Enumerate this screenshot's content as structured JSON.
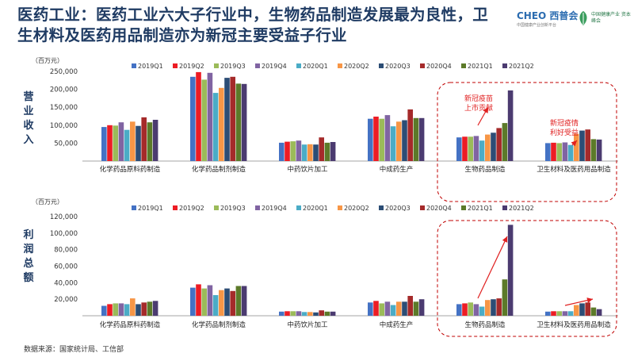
{
  "header": {
    "title": "医药工业：医药工业六大子行业中，生物药品制造发展最为良性，卫生材料及医药用品制造亦为新冠主要受益子行业",
    "logo_primary": "CHEO 西普会",
    "logo_primary_sub": "中国健康产业创新平台",
    "logo_secondary": "中国健康产业 资本峰会"
  },
  "footer": {
    "source": "数据来源：国家统计局、工信部"
  },
  "colors": {
    "series": [
      "#4472c4",
      "#ed1c24",
      "#9bbb59",
      "#8064a2",
      "#4bacc6",
      "#f79646",
      "#2c4d75",
      "#a52a2a",
      "#5c7a29",
      "#4b3b70"
    ],
    "highlight_box": "#c00000",
    "arrow": "#e02020",
    "annotation_text": "#e02020"
  },
  "chart_data": [
    {
      "type": "bar",
      "title": "",
      "side_label": "营业收入",
      "unit_label": "（百万元）",
      "categories": [
        "化学药品原料药制造",
        "化学药品制剂制造",
        "中药饮片加工",
        "中成药生产",
        "生物药品制造",
        "卫生材料及医药用品制造"
      ],
      "ylim": [
        0,
        250000
      ],
      "yticks": [
        "",
        "50,000",
        "100,000",
        "150,000",
        "200,000",
        "250,000"
      ],
      "ytick_values": [
        0,
        50000,
        100000,
        150000,
        200000,
        250000
      ],
      "legend": "top",
      "grid": false,
      "series": [
        {
          "name": "2019Q1",
          "values": [
            95000,
            235000,
            51000,
            118000,
            66000,
            50000
          ]
        },
        {
          "name": "2019Q2",
          "values": [
            100000,
            248000,
            54000,
            124000,
            68000,
            51000
          ]
        },
        {
          "name": "2019Q3",
          "values": [
            99000,
            227000,
            55000,
            118000,
            68000,
            50000
          ]
        },
        {
          "name": "2019Q4",
          "values": [
            108000,
            246000,
            57000,
            128000,
            70000,
            52000
          ]
        },
        {
          "name": "2020Q1",
          "values": [
            87000,
            190000,
            46000,
            97000,
            57000,
            45000
          ]
        },
        {
          "name": "2020Q2",
          "values": [
            110000,
            204000,
            47000,
            110000,
            74000,
            76000
          ]
        },
        {
          "name": "2020Q3",
          "values": [
            98000,
            232000,
            46000,
            114000,
            79000,
            85000
          ]
        },
        {
          "name": "2020Q4",
          "values": [
            122000,
            235000,
            66000,
            144000,
            92000,
            88000
          ]
        },
        {
          "name": "2021Q1",
          "values": [
            108000,
            216000,
            51000,
            120000,
            106000,
            61000
          ]
        },
        {
          "name": "2021Q2",
          "values": [
            115000,
            215000,
            53000,
            120000,
            197000,
            60000
          ]
        }
      ],
      "annotations": [
        {
          "category": "生物药品制造",
          "text": [
            "新冠疫苗",
            "上市贡献"
          ]
        },
        {
          "category": "卫生材料及医药用品制造",
          "text": [
            "新冠疫情",
            "利好受益"
          ]
        }
      ]
    },
    {
      "type": "bar",
      "title": "",
      "side_label": "利润总额",
      "unit_label": "（百万元）",
      "categories": [
        "化学药品原料药制造",
        "化学药品制剂制造",
        "中药饮片加工",
        "中成药生产",
        "生物药品制造",
        "卫生材料及医药用品制造"
      ],
      "ylim": [
        0,
        120000
      ],
      "yticks": [
        "",
        "20,000",
        "40,000",
        "60,000",
        "80,000",
        "100,000",
        "120,000"
      ],
      "ytick_values": [
        0,
        20000,
        40000,
        60000,
        80000,
        100000,
        120000
      ],
      "legend": "top",
      "grid": false,
      "series": [
        {
          "name": "2019Q1",
          "values": [
            12000,
            34000,
            5000,
            16000,
            14000,
            5000
          ]
        },
        {
          "name": "2019Q2",
          "values": [
            14000,
            38000,
            5500,
            18000,
            15000,
            5500
          ]
        },
        {
          "name": "2019Q3",
          "values": [
            15000,
            33000,
            5500,
            15000,
            16000,
            5500
          ]
        },
        {
          "name": "2019Q4",
          "values": [
            15000,
            37000,
            5500,
            17000,
            14000,
            5500
          ]
        },
        {
          "name": "2020Q1",
          "values": [
            14000,
            25000,
            4500,
            13000,
            11000,
            5500
          ]
        },
        {
          "name": "2020Q2",
          "values": [
            21000,
            31000,
            4500,
            17000,
            19000,
            13000
          ]
        },
        {
          "name": "2020Q3",
          "values": [
            14000,
            33000,
            4000,
            17000,
            20000,
            15000
          ]
        },
        {
          "name": "2020Q4",
          "values": [
            16000,
            30000,
            6500,
            24000,
            21000,
            16000
          ]
        },
        {
          "name": "2021Q1",
          "values": [
            17000,
            36000,
            5000,
            17000,
            44000,
            10000
          ]
        },
        {
          "name": "2021Q2",
          "values": [
            18000,
            36000,
            5000,
            20000,
            110000,
            8000
          ]
        }
      ]
    }
  ]
}
